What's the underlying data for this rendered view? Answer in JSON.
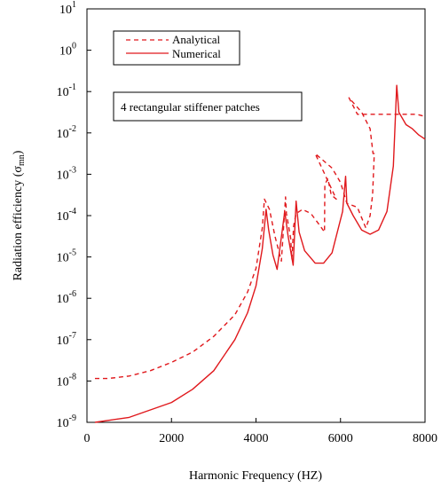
{
  "chart_data": {
    "type": "line",
    "xlabel": "Harmonic Frequency (HZ)",
    "ylabel": "Radiation efficiency (σmn)",
    "ylabel_main": "Radiation efficiency (σ",
    "ylabel_sub": "mn",
    "ylabel_close": ")",
    "xlim": [
      0,
      8000
    ],
    "ylim_exponent": [
      -9,
      1
    ],
    "yscale": "log",
    "grid": false,
    "legend_position": "top-left",
    "annotation": "4 rectangular stiffener patches",
    "x_ticks": [
      {
        "value": 0,
        "label": "0"
      },
      {
        "value": 2000,
        "label": "2000"
      },
      {
        "value": 4000,
        "label": "4000"
      },
      {
        "value": 6000,
        "label": "6000"
      },
      {
        "value": 8000,
        "label": "8000"
      }
    ],
    "y_ticks": [
      {
        "exp": 1,
        "base": "10",
        "sup": "1"
      },
      {
        "exp": 0,
        "base": "10",
        "sup": "0"
      },
      {
        "exp": -1,
        "base": "10",
        "sup": "-1"
      },
      {
        "exp": -2,
        "base": "10",
        "sup": "-2"
      },
      {
        "exp": -3,
        "base": "10",
        "sup": "-3"
      },
      {
        "exp": -4,
        "base": "10",
        "sup": "-4"
      },
      {
        "exp": -5,
        "base": "10",
        "sup": "-5"
      },
      {
        "exp": -6,
        "base": "10",
        "sup": "-6"
      },
      {
        "exp": -7,
        "base": "10",
        "sup": "-7"
      },
      {
        "exp": -8,
        "base": "10",
        "sup": "-8"
      },
      {
        "exp": -9,
        "base": "10",
        "sup": "-9"
      }
    ],
    "series": [
      {
        "name": "Analytical",
        "style": "dashed",
        "color": "#e0181c",
        "points": [
          [
            190,
            -7.94
          ],
          [
            500,
            -7.94
          ],
          [
            1000,
            -7.88
          ],
          [
            1500,
            -7.75
          ],
          [
            2000,
            -7.55
          ],
          [
            2500,
            -7.3
          ],
          [
            3000,
            -6.92
          ],
          [
            3500,
            -6.4
          ],
          [
            3800,
            -5.85
          ],
          [
            4000,
            -5.28
          ],
          [
            4150,
            -4.3
          ],
          [
            4200,
            -3.6
          ],
          [
            4320,
            -3.85
          ],
          [
            4450,
            -4.5
          ],
          [
            4600,
            -5.1
          ],
          [
            4700,
            -3.55
          ],
          [
            4720,
            -3.95
          ],
          [
            4820,
            -4.55
          ],
          [
            4850,
            -5.05
          ],
          [
            4890,
            -4.25
          ],
          [
            4950,
            -3.95
          ],
          [
            5100,
            -3.85
          ],
          [
            5300,
            -3.95
          ],
          [
            5520,
            -4.25
          ],
          [
            5620,
            -4.4
          ],
          [
            5630,
            -3.25
          ],
          [
            5700,
            -3.1
          ],
          [
            5780,
            -3.5
          ],
          [
            5900,
            -3.6
          ],
          [
            5400,
            -2.5
          ],
          [
            5800,
            -2.85
          ],
          [
            6000,
            -3.2
          ],
          [
            6150,
            -3.7
          ],
          [
            6400,
            -3.8
          ],
          [
            6600,
            -4.3
          ],
          [
            6700,
            -4.0
          ],
          [
            6760,
            -3.5
          ],
          [
            6760,
            -3.5
          ],
          [
            6800,
            -2.5
          ],
          [
            6770,
            -2.5
          ],
          [
            6700,
            -1.9
          ],
          [
            6500,
            -1.5
          ],
          [
            6200,
            -1.15
          ],
          [
            6400,
            -1.55
          ],
          [
            6600,
            -1.55
          ],
          [
            7000,
            -1.55
          ],
          [
            7500,
            -1.55
          ],
          [
            7800,
            -1.55
          ],
          [
            8000,
            -1.6
          ]
        ]
      },
      {
        "name": "Numerical",
        "style": "solid",
        "color": "#e0181c",
        "points": [
          [
            190,
            -9.0
          ],
          [
            1000,
            -8.88
          ],
          [
            2000,
            -8.52
          ],
          [
            2500,
            -8.2
          ],
          [
            3000,
            -7.75
          ],
          [
            3500,
            -7.0
          ],
          [
            3800,
            -6.35
          ],
          [
            4000,
            -5.7
          ],
          [
            4150,
            -4.8
          ],
          [
            4240,
            -3.85
          ],
          [
            4300,
            -4.35
          ],
          [
            4400,
            -4.95
          ],
          [
            4500,
            -5.3
          ],
          [
            4680,
            -3.9
          ],
          [
            4760,
            -4.5
          ],
          [
            4880,
            -5.2
          ],
          [
            4950,
            -3.65
          ],
          [
            5020,
            -4.4
          ],
          [
            5150,
            -4.85
          ],
          [
            5400,
            -5.15
          ],
          [
            5600,
            -5.15
          ],
          [
            5800,
            -4.9
          ],
          [
            6050,
            -3.9
          ],
          [
            6120,
            -3.05
          ],
          [
            6150,
            -3.7
          ],
          [
            6300,
            -4.0
          ],
          [
            6500,
            -4.35
          ],
          [
            6700,
            -4.45
          ],
          [
            6900,
            -4.35
          ],
          [
            7100,
            -3.9
          ],
          [
            7250,
            -2.8
          ],
          [
            7330,
            -0.85
          ],
          [
            7380,
            -1.5
          ],
          [
            7550,
            -1.8
          ],
          [
            7700,
            -1.9
          ],
          [
            7850,
            -2.05
          ],
          [
            8000,
            -2.15
          ]
        ]
      }
    ]
  }
}
